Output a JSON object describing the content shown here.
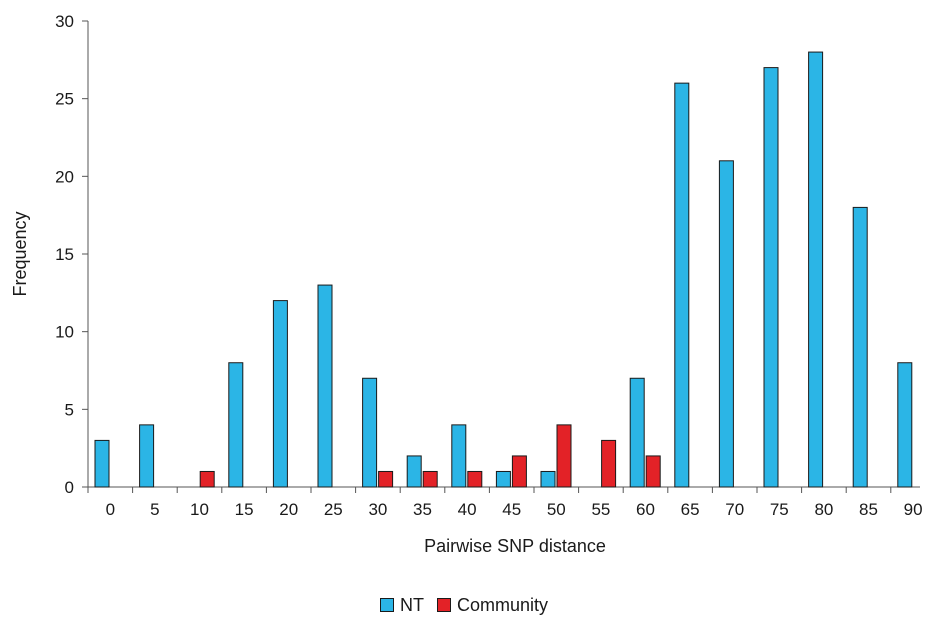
{
  "chart_data": {
    "type": "bar",
    "title": "",
    "xlabel": "Pairwise SNP distance",
    "ylabel": "Frequency",
    "ylim": [
      0,
      30
    ],
    "yticks": [
      0,
      5,
      10,
      15,
      20,
      25,
      30
    ],
    "categories": [
      "0",
      "5",
      "10",
      "15",
      "20",
      "25",
      "30",
      "35",
      "40",
      "45",
      "50",
      "55",
      "60",
      "65",
      "70",
      "75",
      "80",
      "85",
      "90"
    ],
    "series": [
      {
        "name": "NT",
        "color": "#2bb5e6",
        "values": [
          3,
          4,
          0,
          8,
          12,
          13,
          7,
          2,
          4,
          1,
          1,
          0,
          7,
          26,
          21,
          27,
          28,
          18,
          8
        ]
      },
      {
        "name": "Community",
        "color": "#e32227",
        "values": [
          0,
          0,
          1,
          0,
          0,
          0,
          1,
          1,
          1,
          2,
          4,
          3,
          2,
          0,
          0,
          0,
          0,
          0,
          0
        ]
      }
    ],
    "legend_position": "bottom-center",
    "grid": false
  }
}
